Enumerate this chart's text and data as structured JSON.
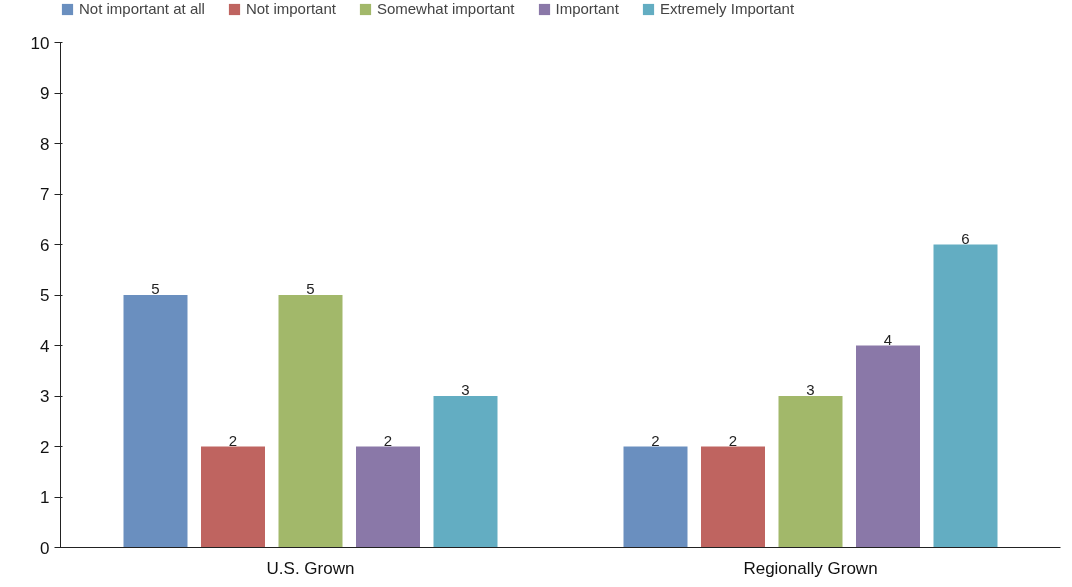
{
  "chart_data": {
    "type": "bar",
    "categories": [
      "U.S. Grown",
      "Regionally Grown"
    ],
    "series": [
      {
        "name": "Not important at all",
        "color": "#6a8fbf",
        "values": [
          5,
          2
        ]
      },
      {
        "name": "Not important",
        "color": "#bf6460",
        "values": [
          2,
          2
        ]
      },
      {
        "name": "Somewhat important",
        "color": "#a2b86a",
        "values": [
          5,
          3
        ]
      },
      {
        "name": "Important",
        "color": "#8a78a8",
        "values": [
          2,
          4
        ]
      },
      {
        "name": "Extremely Important",
        "color": "#63adc2",
        "values": [
          3,
          6
        ]
      }
    ],
    "ylim": [
      0,
      10
    ],
    "yticks": [
      0,
      1,
      2,
      3,
      4,
      5,
      6,
      7,
      8,
      9,
      10
    ],
    "grid": false,
    "legend": "top",
    "data_labels": true
  }
}
